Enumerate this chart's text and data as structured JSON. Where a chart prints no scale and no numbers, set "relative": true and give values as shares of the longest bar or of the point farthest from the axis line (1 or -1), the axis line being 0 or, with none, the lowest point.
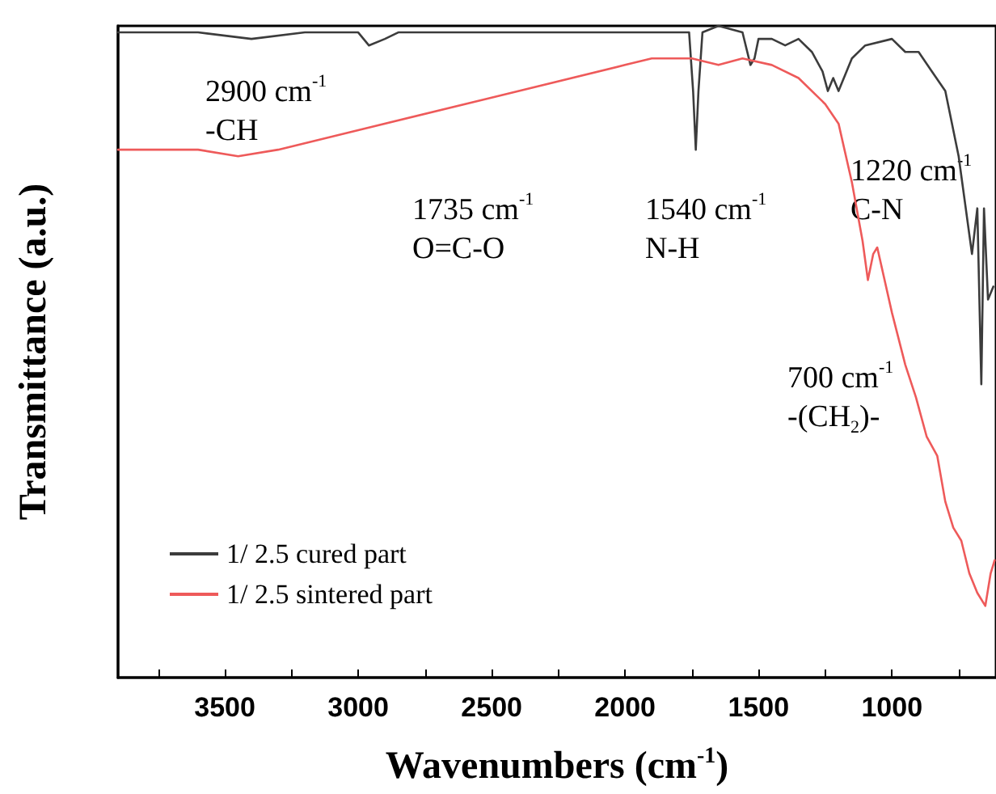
{
  "chart_data": {
    "type": "line",
    "relative": true,
    "xlabel": "Wavenumbers (cm$^{-1}$)",
    "ylabel": "Transmittance (a.u.)",
    "xlim": [
      3900,
      610
    ],
    "xticks": [
      {
        "value": 3750,
        "label": null
      },
      3500,
      {
        "value": 3250,
        "label": null
      },
      3000,
      {
        "value": 2750,
        "label": null
      },
      2500,
      {
        "value": 2250,
        "label": null
      },
      2000,
      {
        "value": 1750,
        "label": null
      },
      1500,
      {
        "value": 1250,
        "label": null
      },
      1000,
      {
        "value": 750,
        "label": null
      }
    ],
    "legend": "bottom left",
    "grid": false,
    "marker": "none",
    "line_style": "solid",
    "series": [
      {
        "name": "1/ 2.5 cured part",
        "color": "#3c3c3c",
        "x": [
          3900,
          3600,
          3400,
          3200,
          3000,
          2960,
          2900,
          2850,
          2500,
          2000,
          1760,
          1745,
          1735,
          1725,
          1710,
          1650,
          1560,
          1530,
          1515,
          1500,
          1450,
          1400,
          1350,
          1300,
          1260,
          1240,
          1220,
          1200,
          1150,
          1100,
          1000,
          950,
          900,
          850,
          800,
          750,
          700,
          680,
          665,
          655,
          640,
          620
        ],
        "values": [
          0.99,
          0.99,
          0.98,
          0.99,
          0.99,
          0.97,
          0.98,
          0.99,
          0.99,
          0.99,
          0.99,
          0.9,
          0.81,
          0.9,
          0.99,
          1.0,
          0.99,
          0.94,
          0.95,
          0.98,
          0.98,
          0.97,
          0.98,
          0.96,
          0.93,
          0.9,
          0.92,
          0.9,
          0.95,
          0.97,
          0.98,
          0.96,
          0.96,
          0.93,
          0.9,
          0.8,
          0.65,
          0.72,
          0.45,
          0.72,
          0.58,
          0.6
        ]
      },
      {
        "name": "1/ 2.5 sintered part",
        "color": "#ee5a5a",
        "x": [
          3900,
          3600,
          3450,
          3300,
          3000,
          2500,
          2000,
          1900,
          1750,
          1650,
          1560,
          1450,
          1350,
          1250,
          1200,
          1150,
          1110,
          1090,
          1070,
          1055,
          1000,
          950,
          910,
          870,
          830,
          800,
          770,
          740,
          710,
          680,
          650,
          630,
          615
        ],
        "values": [
          0.81,
          0.81,
          0.8,
          0.81,
          0.84,
          0.89,
          0.94,
          0.95,
          0.95,
          0.94,
          0.95,
          0.94,
          0.92,
          0.88,
          0.85,
          0.76,
          0.67,
          0.61,
          0.65,
          0.66,
          0.56,
          0.48,
          0.43,
          0.37,
          0.34,
          0.27,
          0.23,
          0.21,
          0.16,
          0.13,
          0.11,
          0.16,
          0.18
        ]
      }
    ],
    "annotations": [
      "2900 cm$^{-1}$",
      "-CH",
      "1735 cm$^{-1}$",
      "O=C-O",
      "1540 cm$^{-1}$",
      "N-H",
      "1220 cm$^{-1}$",
      "C-N",
      "700 cm$^{-1}$",
      "-(CH$_{2}$)-"
    ]
  }
}
